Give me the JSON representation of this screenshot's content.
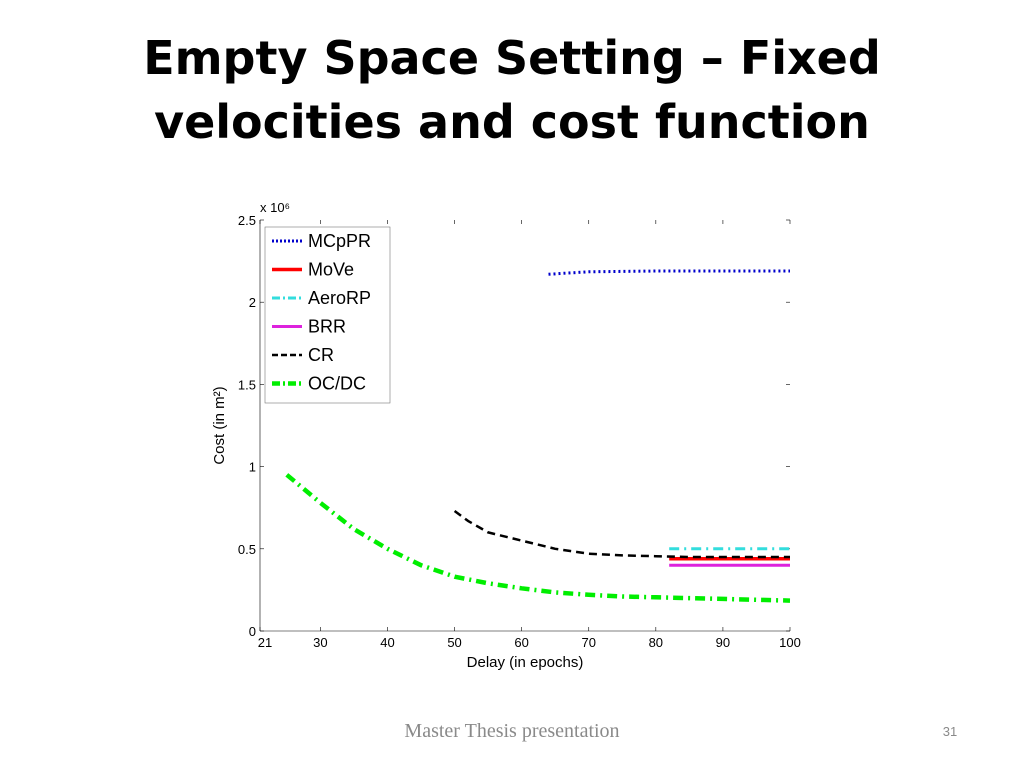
{
  "slide": {
    "title_line1": "Empty Space Setting – Fixed",
    "title_line2": "velocities and cost function",
    "footer": "Master Thesis presentation",
    "page_number": "31"
  },
  "chart_data": {
    "type": "line",
    "title": "",
    "xlabel": "Delay (in epochs)",
    "ylabel": "Cost (in m²)",
    "y_multiplier_label": "x 10⁶",
    "xlim": [
      21,
      100
    ],
    "ylim": [
      0,
      2.5
    ],
    "x_ticks": [
      21,
      30,
      40,
      50,
      60,
      70,
      80,
      90,
      100
    ],
    "y_ticks": [
      0,
      0.5,
      1,
      1.5,
      2,
      2.5
    ],
    "grid": false,
    "legend_position": "top-left",
    "series": [
      {
        "name": "MCpPR",
        "color": "#0000cc",
        "style": "dotted",
        "x": [
          64,
          66,
          70,
          80,
          90,
          100
        ],
        "y": [
          2.17,
          2.175,
          2.185,
          2.19,
          2.19,
          2.19
        ]
      },
      {
        "name": "MoVe",
        "color": "#ff0000",
        "style": "solid",
        "x": [
          82,
          100
        ],
        "y": [
          0.44,
          0.44
        ]
      },
      {
        "name": "AeroRP",
        "color": "#33dddd",
        "style": "dashdot",
        "x": [
          82,
          100
        ],
        "y": [
          0.5,
          0.5
        ]
      },
      {
        "name": "BRR",
        "color": "#dd22dd",
        "style": "solid",
        "x": [
          82,
          100
        ],
        "y": [
          0.4,
          0.4
        ]
      },
      {
        "name": "CR",
        "color": "#000000",
        "style": "dashed",
        "x": [
          50,
          52,
          55,
          60,
          65,
          70,
          75,
          80,
          85,
          90,
          95,
          100
        ],
        "y": [
          0.73,
          0.67,
          0.6,
          0.55,
          0.5,
          0.47,
          0.46,
          0.455,
          0.45,
          0.45,
          0.45,
          0.45
        ]
      },
      {
        "name": "OC/DC",
        "color": "#00ee00",
        "style": "dashdot",
        "x": [
          25,
          30,
          35,
          40,
          45,
          50,
          55,
          60,
          65,
          70,
          75,
          80,
          85,
          90,
          95,
          100
        ],
        "y": [
          0.95,
          0.78,
          0.62,
          0.5,
          0.4,
          0.33,
          0.29,
          0.26,
          0.235,
          0.22,
          0.21,
          0.205,
          0.2,
          0.195,
          0.19,
          0.185
        ]
      }
    ]
  }
}
